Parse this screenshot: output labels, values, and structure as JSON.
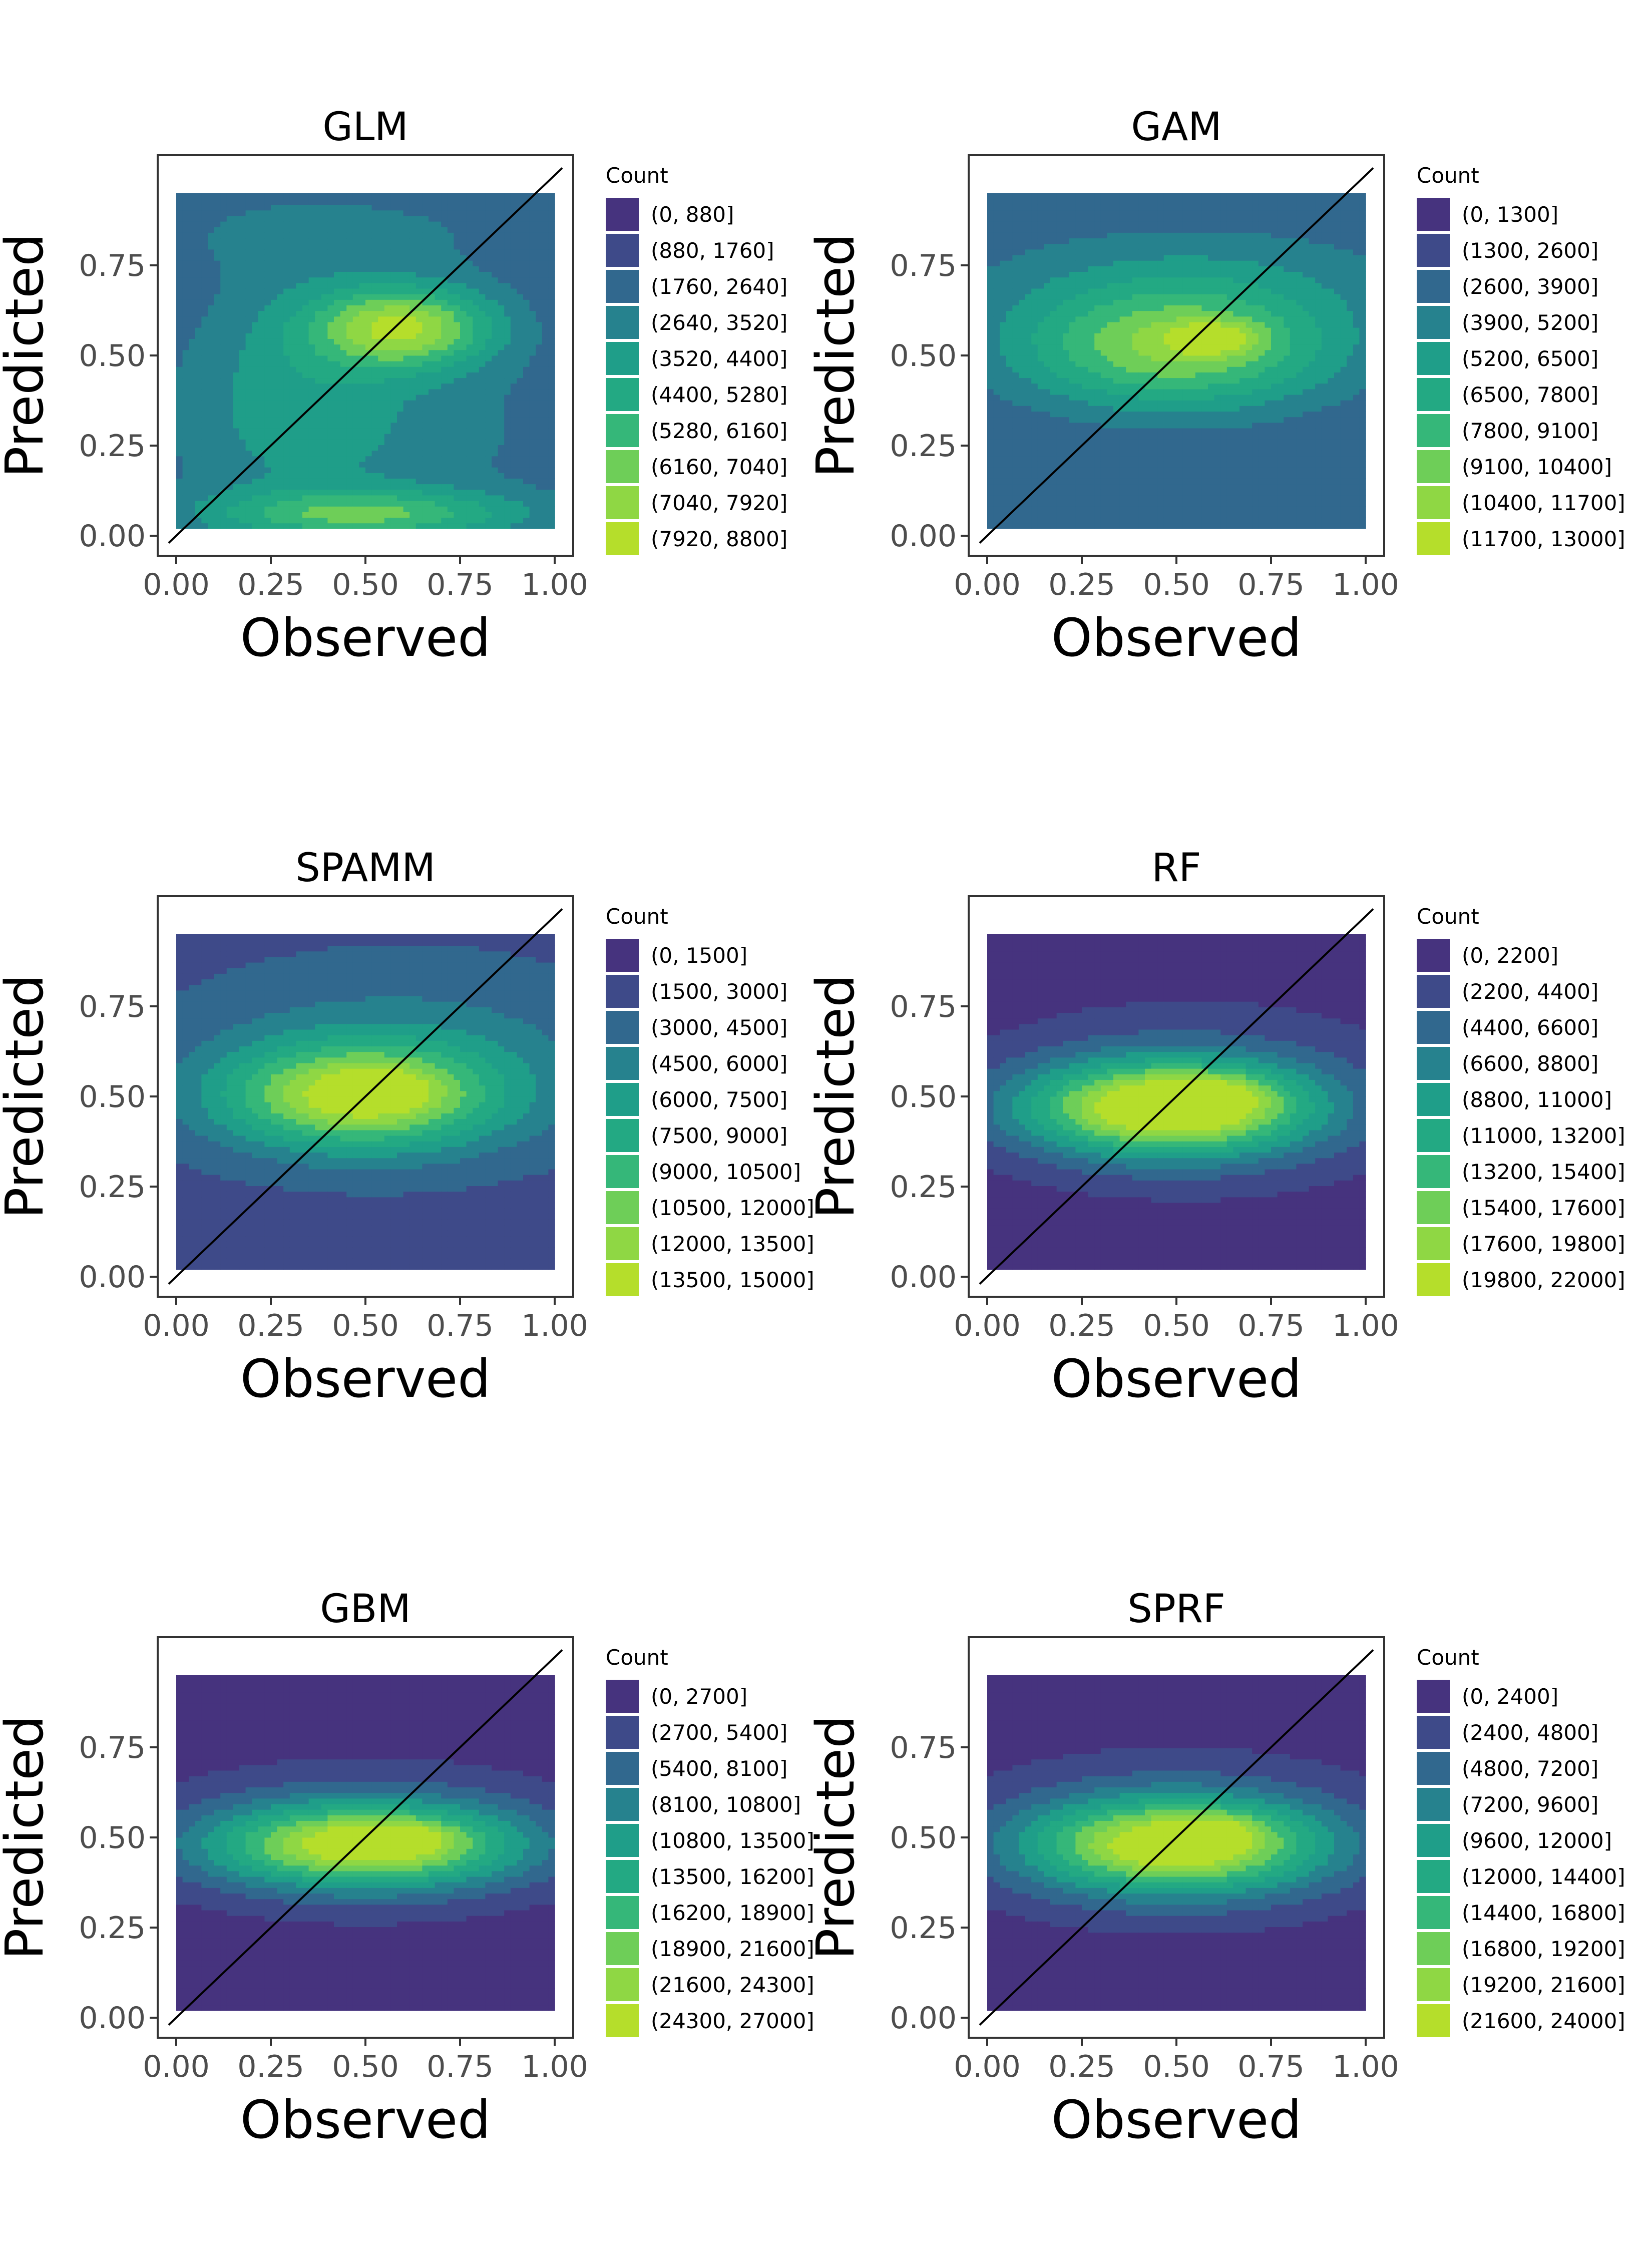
{
  "chart_data": [
    {
      "type": "contour",
      "title": "GLM",
      "xlabel": "Observed",
      "ylabel": "Predicted",
      "xlim": [
        0,
        1
      ],
      "ylim": [
        0,
        1
      ],
      "x_ticks": [
        "0.00",
        "0.25",
        "0.50",
        "0.75",
        "1.00"
      ],
      "y_ticks": [
        "0.00",
        "0.25",
        "0.50",
        "0.75"
      ],
      "reference_line": "y = x",
      "legend_title": "Count",
      "legend_position": "right",
      "levels": [
        "(0, 880]",
        "(880, 1760]",
        "(1760, 2640]",
        "(2640, 3520]",
        "(3520, 4400]",
        "(4400, 5280]",
        "(5280, 6160]",
        "(6160, 7040]",
        "(7040, 7920]",
        "(7920, 8800]"
      ],
      "density": {
        "base": 2,
        "blobs": [
          {
            "x": 0.6,
            "y": 0.58,
            "sx": 0.17,
            "sy": 0.08,
            "amp": 6.5
          },
          {
            "x": 0.5,
            "y": 0.06,
            "sx": 0.3,
            "sy": 0.05,
            "amp": 4.5
          },
          {
            "x": 0.3,
            "y": 0.45,
            "sx": 0.2,
            "sy": 0.25,
            "amp": 1.5
          },
          {
            "x": 0.5,
            "y": 0.3,
            "sx": 0.4,
            "sy": 0.2,
            "amp": 1.5
          },
          {
            "x": 0.5,
            "y": 0.85,
            "sx": 0.5,
            "sy": 0.1,
            "amp": 1
          }
        ]
      }
    },
    {
      "type": "contour",
      "title": "GAM",
      "xlabel": "Observed",
      "ylabel": "Predicted",
      "xlim": [
        0,
        1
      ],
      "ylim": [
        0,
        1
      ],
      "x_ticks": [
        "0.00",
        "0.25",
        "0.50",
        "0.75",
        "1.00"
      ],
      "y_ticks": [
        "0.00",
        "0.25",
        "0.50",
        "0.75"
      ],
      "reference_line": "y = x",
      "legend_title": "Count",
      "legend_position": "right",
      "levels": [
        "(0, 1300]",
        "(1300, 2600]",
        "(2600, 3900]",
        "(3900, 5200]",
        "(5200, 6500]",
        "(6500, 7800]",
        "(7800, 9100]",
        "(9100, 10400]",
        "(10400, 11700]",
        "(11700, 13000]"
      ],
      "density": {
        "base": 2,
        "blobs": [
          {
            "x": 0.5,
            "y": 0.52,
            "sx": 0.3,
            "sy": 0.12,
            "amp": 6
          },
          {
            "x": 0.6,
            "y": 0.55,
            "sx": 0.08,
            "sy": 0.03,
            "amp": 3
          },
          {
            "x": 0.55,
            "y": 0.72,
            "sx": 0.45,
            "sy": 0.12,
            "amp": 1.5
          }
        ]
      }
    },
    {
      "type": "contour",
      "title": "SPAMM",
      "xlabel": "Observed",
      "ylabel": "Predicted",
      "xlim": [
        0,
        1
      ],
      "ylim": [
        0,
        1
      ],
      "x_ticks": [
        "0.00",
        "0.25",
        "0.50",
        "0.75",
        "1.00"
      ],
      "y_ticks": [
        "0.00",
        "0.25",
        "0.50",
        "0.75"
      ],
      "reference_line": "y = x",
      "legend_title": "Count",
      "legend_position": "right",
      "levels": [
        "(0, 1500]",
        "(1500, 3000]",
        "(3000, 4500]",
        "(4500, 6000]",
        "(6000, 7500]",
        "(7500, 9000]",
        "(9000, 10500]",
        "(10500, 12000]",
        "(12000, 13500]",
        "(13500, 15000]"
      ],
      "density": {
        "base": 1.6,
        "blobs": [
          {
            "x": 0.48,
            "y": 0.5,
            "sx": 0.25,
            "sy": 0.1,
            "amp": 7
          },
          {
            "x": 0.55,
            "y": 0.52,
            "sx": 0.07,
            "sy": 0.03,
            "amp": 2.5
          },
          {
            "x": 0.6,
            "y": 0.6,
            "sx": 0.4,
            "sy": 0.18,
            "amp": 2
          }
        ]
      }
    },
    {
      "type": "contour",
      "title": "RF",
      "xlabel": "Observed",
      "ylabel": "Predicted",
      "xlim": [
        0,
        1
      ],
      "ylim": [
        0,
        1
      ],
      "x_ticks": [
        "0.00",
        "0.25",
        "0.50",
        "0.75",
        "1.00"
      ],
      "y_ticks": [
        "0.00",
        "0.25",
        "0.50",
        "0.75"
      ],
      "reference_line": "y = x",
      "legend_title": "Count",
      "legend_position": "right",
      "levels": [
        "(0, 2200]",
        "(2200, 4400]",
        "(4400, 6600]",
        "(6600, 8800]",
        "(8800, 11000]",
        "(11000, 13200]",
        "(13200, 15400]",
        "(15400, 17600]",
        "(17600, 19800]",
        "(19800, 22000]"
      ],
      "density": {
        "base": 0,
        "blobs": [
          {
            "x": 0.48,
            "y": 0.47,
            "sx": 0.26,
            "sy": 0.09,
            "amp": 9.7
          },
          {
            "x": 0.6,
            "y": 0.5,
            "sx": 0.1,
            "sy": 0.04,
            "amp": 1.5
          },
          {
            "x": 0.55,
            "y": 0.5,
            "sx": 0.5,
            "sy": 0.22,
            "amp": 2
          }
        ]
      }
    },
    {
      "type": "contour",
      "title": "GBM",
      "xlabel": "Observed",
      "ylabel": "Predicted",
      "xlim": [
        0,
        1
      ],
      "ylim": [
        0,
        1
      ],
      "x_ticks": [
        "0.00",
        "0.25",
        "0.50",
        "0.75",
        "1.00"
      ],
      "y_ticks": [
        "0.00",
        "0.25",
        "0.50",
        "0.75"
      ],
      "reference_line": "y = x",
      "legend_title": "Count",
      "legend_position": "right",
      "levels": [
        "(0, 2700]",
        "(2700, 5400]",
        "(5400, 8100]",
        "(8100, 10800]",
        "(10800, 13500]",
        "(13500, 16200]",
        "(16200, 18900]",
        "(18900, 21600]",
        "(21600, 24300]",
        "(24300, 27000]"
      ],
      "density": {
        "base": 0,
        "blobs": [
          {
            "x": 0.5,
            "y": 0.48,
            "sx": 0.28,
            "sy": 0.08,
            "amp": 8.5
          },
          {
            "x": 0.58,
            "y": 0.5,
            "sx": 0.08,
            "sy": 0.025,
            "amp": 2.5
          },
          {
            "x": 0.5,
            "y": 0.5,
            "sx": 0.5,
            "sy": 0.18,
            "amp": 2
          }
        ]
      }
    },
    {
      "type": "contour",
      "title": "SPRF",
      "xlabel": "Observed",
      "ylabel": "Predicted",
      "xlim": [
        0,
        1
      ],
      "ylim": [
        0,
        1
      ],
      "x_ticks": [
        "0.00",
        "0.25",
        "0.50",
        "0.75",
        "1.00"
      ],
      "y_ticks": [
        "0.00",
        "0.25",
        "0.50",
        "0.75"
      ],
      "reference_line": "y = x",
      "legend_title": "Count",
      "legend_position": "right",
      "levels": [
        "(0, 2400]",
        "(2400, 4800]",
        "(4800, 7200]",
        "(7200, 9600]",
        "(9600, 12000]",
        "(12000, 14400]",
        "(14400, 16800]",
        "(16800, 19200]",
        "(19200, 21600]",
        "(21600, 24000]"
      ],
      "density": {
        "base": 0,
        "blobs": [
          {
            "x": 0.5,
            "y": 0.48,
            "sx": 0.27,
            "sy": 0.09,
            "amp": 8.8
          },
          {
            "x": 0.6,
            "y": 0.52,
            "sx": 0.08,
            "sy": 0.03,
            "amp": 2
          },
          {
            "x": 0.5,
            "y": 0.5,
            "sx": 0.5,
            "sy": 0.2,
            "amp": 2
          }
        ]
      }
    }
  ],
  "palette": [
    "#46337e",
    "#3e4a89",
    "#31688e",
    "#26828e",
    "#1f9e89",
    "#23a983",
    "#35b779",
    "#6ece58",
    "#8fd744",
    "#b5de2b"
  ]
}
